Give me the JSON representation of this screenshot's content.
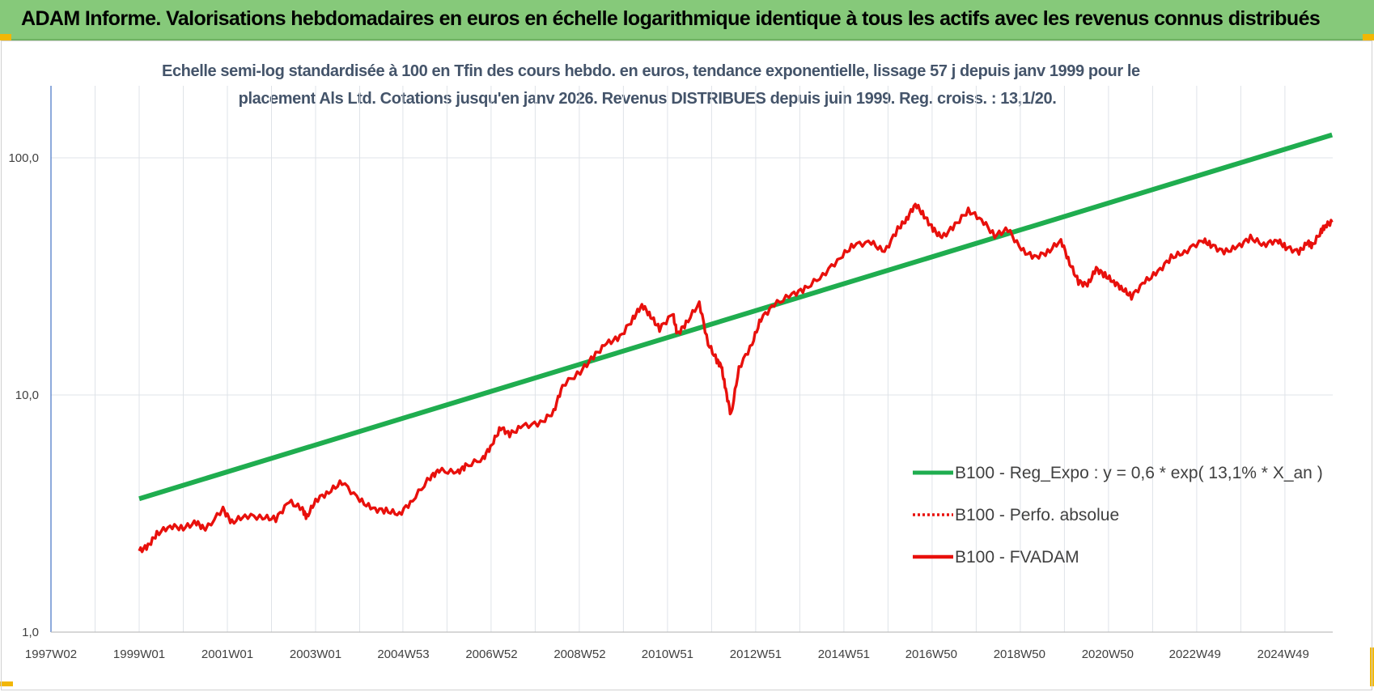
{
  "header": {
    "title": "ADAM Informe. Valorisations hebdomadaires en euros en échelle logarithmique identique à tous les actifs avec les revenus connus distribués"
  },
  "colors": {
    "banner": "#86c97a",
    "trend": "#1fad4f",
    "fvadam": "#e8100c",
    "perfo": "#e8100c",
    "subtitle": "#44546a",
    "grid": "#dfe3e8"
  },
  "chart_data": {
    "type": "line",
    "title_line1": "Echelle semi-log standardisée à 100 en Tfin des cours hebdo. en euros, tendance exponentielle, lissage 57 j depuis janv 1999 pour le",
    "title_line2": "placement Als Ltd. Cotations jusqu'en janv 2026. Revenus DISTRIBUES depuis juin 1999. Reg. croiss. : 13,1/20.",
    "y_scale": "log",
    "ylim": [
      1,
      200
    ],
    "xlim": [
      1997.0,
      2026.1
    ],
    "grid": true,
    "legend_position": "right",
    "y_ticks": [
      {
        "value": 1,
        "label": "1,0"
      },
      {
        "value": 10,
        "label": "10,0"
      },
      {
        "value": 100,
        "label": "100,0"
      }
    ],
    "x_ticks": [
      {
        "year": 1997.0,
        "label": "1997W02"
      },
      {
        "year": 1999.0,
        "label": "1999W01"
      },
      {
        "year": 2001.0,
        "label": "2001W01"
      },
      {
        "year": 2003.0,
        "label": "2003W01"
      },
      {
        "year": 2004.99,
        "label": "2004W53"
      },
      {
        "year": 2006.99,
        "label": "2006W52"
      },
      {
        "year": 2008.99,
        "label": "2008W52"
      },
      {
        "year": 2010.98,
        "label": "2010W51"
      },
      {
        "year": 2012.98,
        "label": "2012W51"
      },
      {
        "year": 2014.98,
        "label": "2014W51"
      },
      {
        "year": 2016.96,
        "label": "2016W50"
      },
      {
        "year": 2018.96,
        "label": "2018W50"
      },
      {
        "year": 2020.96,
        "label": "2020W50"
      },
      {
        "year": 2022.94,
        "label": "2022W49"
      },
      {
        "year": 2024.94,
        "label": "2024W49"
      }
    ],
    "series": [
      {
        "name": "B100 - Reg_Expo : y = 0,6 * exp( 13,1% *  X_an )",
        "style": "solid",
        "points": [
          [
            1999.0,
            3.65
          ],
          [
            2026.05,
            125
          ]
        ]
      },
      {
        "name": "B100 - Perfo. absolue",
        "style": "dotted",
        "points": []
      },
      {
        "name": "B100 - FVADAM",
        "style": "solid",
        "points": [
          [
            1999.0,
            2.2
          ],
          [
            1999.2,
            2.3
          ],
          [
            1999.4,
            2.6
          ],
          [
            1999.7,
            2.8
          ],
          [
            2000.0,
            2.75
          ],
          [
            2000.3,
            2.9
          ],
          [
            2000.5,
            2.7
          ],
          [
            2000.9,
            3.3
          ],
          [
            2001.1,
            2.9
          ],
          [
            2001.4,
            3.1
          ],
          [
            2001.8,
            3.05
          ],
          [
            2002.1,
            3.0
          ],
          [
            2002.4,
            3.55
          ],
          [
            2002.7,
            3.3
          ],
          [
            2002.8,
            3.05
          ],
          [
            2003.0,
            3.6
          ],
          [
            2003.3,
            3.9
          ],
          [
            2003.6,
            4.3
          ],
          [
            2004.0,
            3.6
          ],
          [
            2004.3,
            3.3
          ],
          [
            2004.6,
            3.25
          ],
          [
            2004.9,
            3.15
          ],
          [
            2005.2,
            3.6
          ],
          [
            2005.6,
            4.5
          ],
          [
            2005.8,
            4.8
          ],
          [
            2006.2,
            4.7
          ],
          [
            2006.4,
            5.0
          ],
          [
            2006.8,
            5.4
          ],
          [
            2007.0,
            6.2
          ],
          [
            2007.2,
            7.3
          ],
          [
            2007.4,
            6.8
          ],
          [
            2007.7,
            7.4
          ],
          [
            2008.1,
            7.6
          ],
          [
            2008.4,
            8.5
          ],
          [
            2008.6,
            11.0
          ],
          [
            2009.0,
            12.5
          ],
          [
            2009.3,
            14.5
          ],
          [
            2009.6,
            16.5
          ],
          [
            2009.9,
            17.5
          ],
          [
            2010.2,
            21.0
          ],
          [
            2010.4,
            24.0
          ],
          [
            2010.6,
            21.5
          ],
          [
            2010.8,
            19.0
          ],
          [
            2011.1,
            22.0
          ],
          [
            2011.2,
            18.0
          ],
          [
            2011.4,
            20.0
          ],
          [
            2011.7,
            24.5
          ],
          [
            2011.9,
            16.5
          ],
          [
            2012.1,
            14.0
          ],
          [
            2012.2,
            13.2
          ],
          [
            2012.3,
            10.5
          ],
          [
            2012.42,
            8.2
          ],
          [
            2012.6,
            13.0
          ],
          [
            2012.9,
            16.5
          ],
          [
            2013.1,
            21.0
          ],
          [
            2013.4,
            24.0
          ],
          [
            2013.8,
            26.5
          ],
          [
            2014.1,
            28.0
          ],
          [
            2014.5,
            32.0
          ],
          [
            2014.9,
            38.0
          ],
          [
            2015.2,
            43.0
          ],
          [
            2015.6,
            44.0
          ],
          [
            2015.9,
            40.0
          ],
          [
            2016.2,
            50.0
          ],
          [
            2016.4,
            55.0
          ],
          [
            2016.6,
            64.0
          ],
          [
            2016.8,
            57.0
          ],
          [
            2017.0,
            50.0
          ],
          [
            2017.2,
            46.0
          ],
          [
            2017.5,
            52.0
          ],
          [
            2017.8,
            60.0
          ],
          [
            2018.1,
            55.0
          ],
          [
            2018.4,
            47.0
          ],
          [
            2018.7,
            50.0
          ],
          [
            2019.0,
            41.0
          ],
          [
            2019.3,
            38.0
          ],
          [
            2019.6,
            40.0
          ],
          [
            2019.9,
            45.0
          ],
          [
            2020.1,
            36.0
          ],
          [
            2020.3,
            30.0
          ],
          [
            2020.5,
            29.0
          ],
          [
            2020.7,
            34.0
          ],
          [
            2020.9,
            32.0
          ],
          [
            2021.1,
            30.0
          ],
          [
            2021.3,
            28.0
          ],
          [
            2021.5,
            26.0
          ],
          [
            2021.8,
            30.0
          ],
          [
            2022.1,
            33.0
          ],
          [
            2022.4,
            38.0
          ],
          [
            2022.7,
            40.0
          ],
          [
            2023.1,
            45.0
          ],
          [
            2023.3,
            43.0
          ],
          [
            2023.6,
            40.0
          ],
          [
            2023.9,
            42.0
          ],
          [
            2024.2,
            46.0
          ],
          [
            2024.5,
            43.0
          ],
          [
            2024.8,
            45.0
          ],
          [
            2025.0,
            42.0
          ],
          [
            2025.3,
            40.0
          ],
          [
            2025.5,
            44.0
          ],
          [
            2025.6,
            42.5
          ],
          [
            2025.8,
            49.0
          ],
          [
            2025.9,
            52.0
          ],
          [
            2026.05,
            53.5
          ]
        ]
      }
    ]
  }
}
